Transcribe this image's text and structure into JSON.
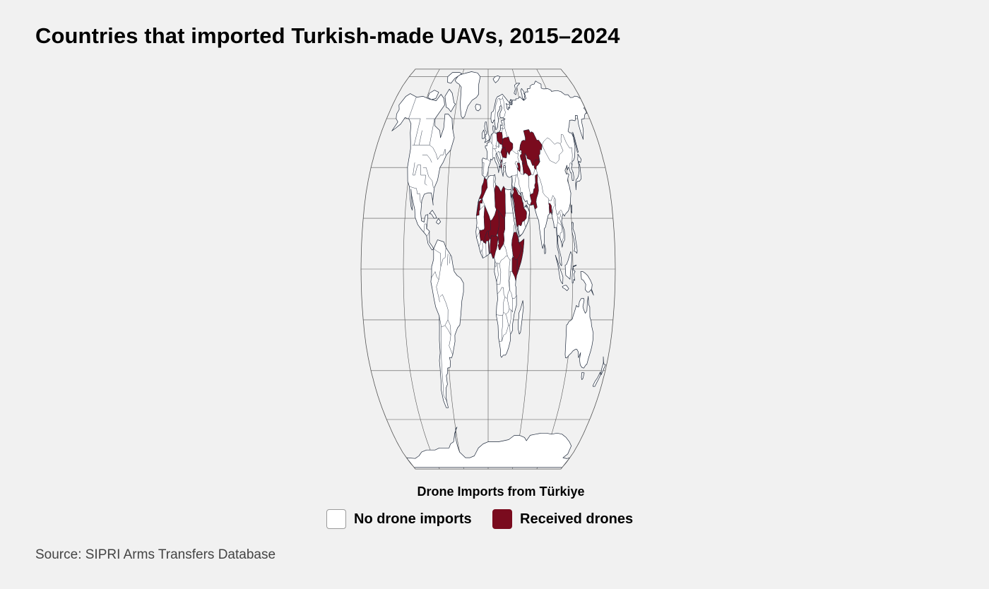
{
  "title": "Countries that imported Turkish-made UAVs, 2015–2024",
  "legend": {
    "title": "Drone Imports from Türkiye",
    "items": [
      {
        "label": "No drone imports",
        "color": "#ffffff"
      },
      {
        "label": "Received drones",
        "color": "#7a0b1e"
      }
    ]
  },
  "source": "Source: SIPRI Arms Transfers Database",
  "map": {
    "projection": "Robinson",
    "land_color": "#ffffff",
    "highlight_color": "#7a0b1e",
    "border_color": "#1f2a3c",
    "graticule_color": "#555555",
    "highlighted_regions": [
      "Poland",
      "Ukraine",
      "Romania",
      "Albania",
      "Kosovo",
      "Azerbaijan",
      "Kazakhstan",
      "Turkmenistan",
      "Kyrgyzstan",
      "Pakistan",
      "Bangladesh",
      "Morocco",
      "Libya",
      "Saudi Arabia",
      "Mali",
      "Burkina Faso",
      "Niger",
      "Nigeria",
      "Chad",
      "Togo",
      "Ethiopia",
      "Kenya",
      "Somalia"
    ]
  }
}
